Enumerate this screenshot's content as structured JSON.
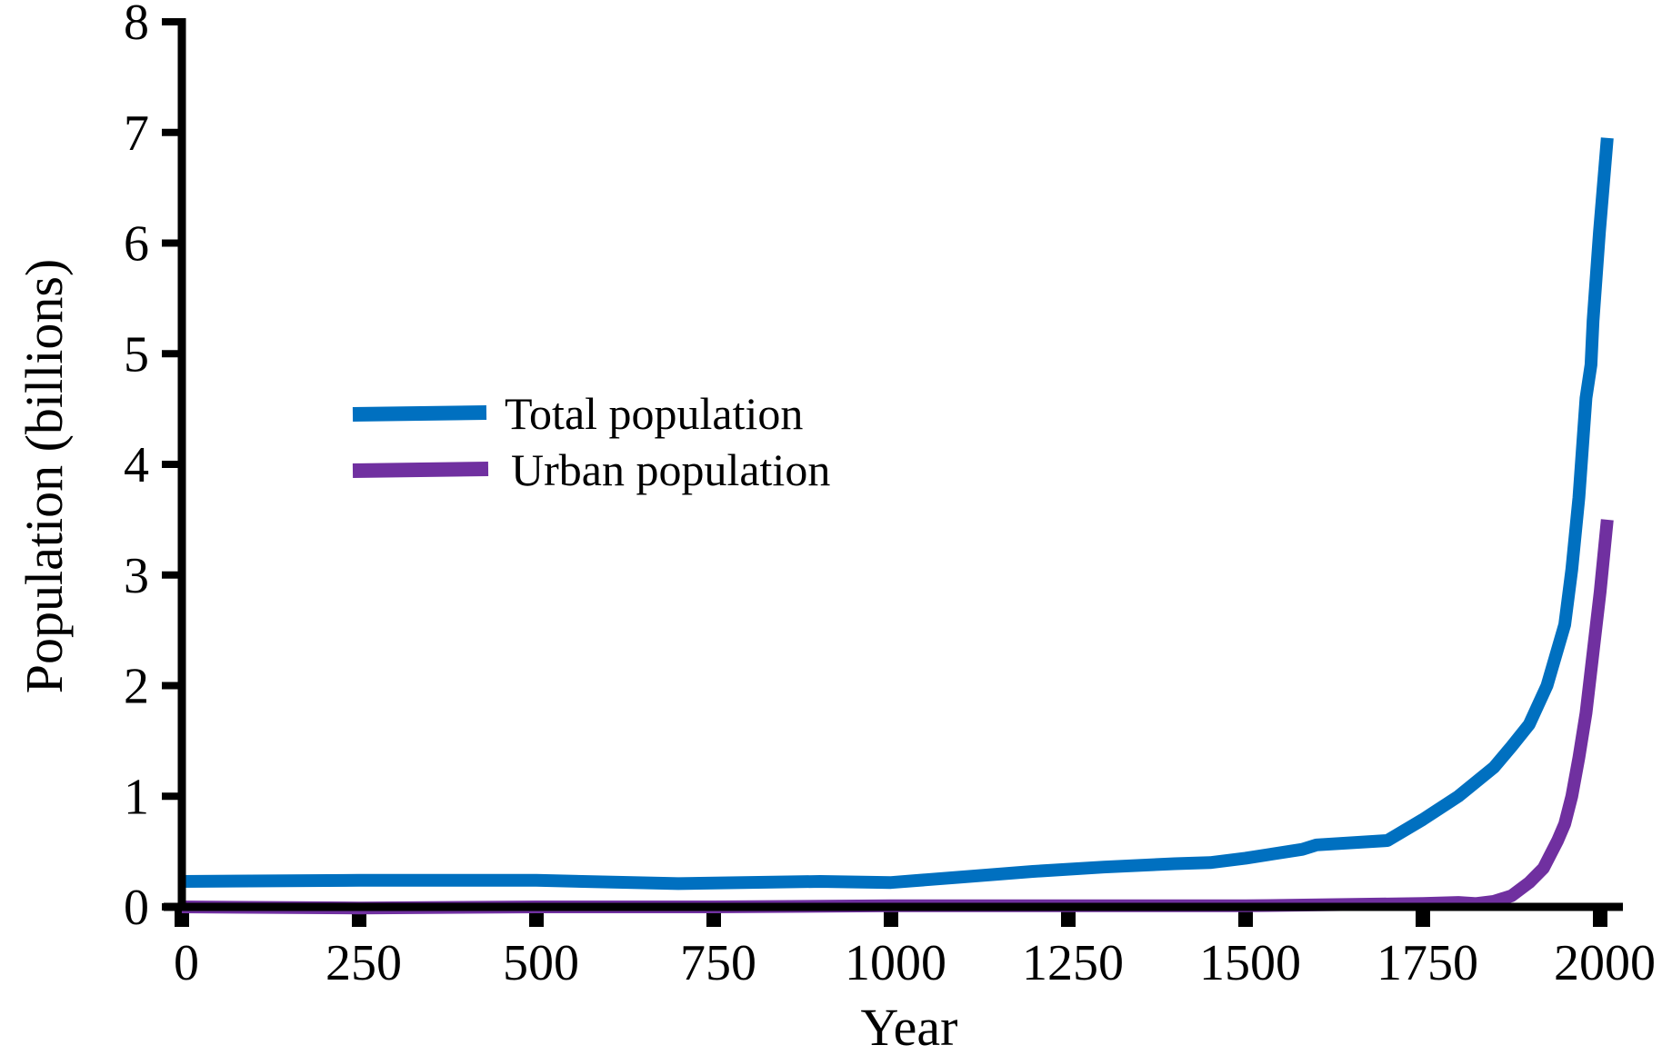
{
  "chart_data": {
    "type": "line",
    "title": "",
    "xlabel": "Year",
    "ylabel": "Population (billions)",
    "xlim": [
      0,
      2000
    ],
    "ylim": [
      0,
      8
    ],
    "x_ticks": [
      0,
      250,
      500,
      750,
      1000,
      1250,
      1500,
      1750,
      2000
    ],
    "y_ticks": [
      0,
      1,
      2,
      3,
      4,
      5,
      6,
      7,
      8
    ],
    "grid": false,
    "legend_position": "center-left",
    "series": [
      {
        "name": "Total population",
        "color": "#0070c0",
        "x": [
          0,
          250,
          500,
          700,
          900,
          1000,
          1100,
          1200,
          1300,
          1400,
          1450,
          1500,
          1580,
          1600,
          1700,
          1750,
          1800,
          1850,
          1875,
          1900,
          1925,
          1950,
          1960,
          1970,
          1980,
          1987,
          1990,
          1999,
          2010
        ],
        "y": [
          0.23,
          0.24,
          0.24,
          0.21,
          0.23,
          0.22,
          0.27,
          0.32,
          0.36,
          0.39,
          0.4,
          0.44,
          0.52,
          0.56,
          0.6,
          0.79,
          1.0,
          1.26,
          1.45,
          1.65,
          2.0,
          2.55,
          3.05,
          3.7,
          4.6,
          4.9,
          5.3,
          6.1,
          6.95
        ]
      },
      {
        "name": "Urban population",
        "color": "#7030a0",
        "x": [
          0,
          250,
          500,
          750,
          1000,
          1250,
          1500,
          1750,
          1800,
          1825,
          1850,
          1875,
          1900,
          1920,
          1940,
          1950,
          1960,
          1970,
          1980,
          1990,
          2000,
          2010
        ],
        "y": [
          0.0,
          -0.01,
          0.0,
          0.0,
          0.01,
          0.01,
          0.01,
          0.03,
          0.04,
          0.03,
          0.05,
          0.1,
          0.22,
          0.35,
          0.6,
          0.75,
          1.0,
          1.35,
          1.75,
          2.3,
          2.85,
          3.5
        ]
      }
    ]
  }
}
